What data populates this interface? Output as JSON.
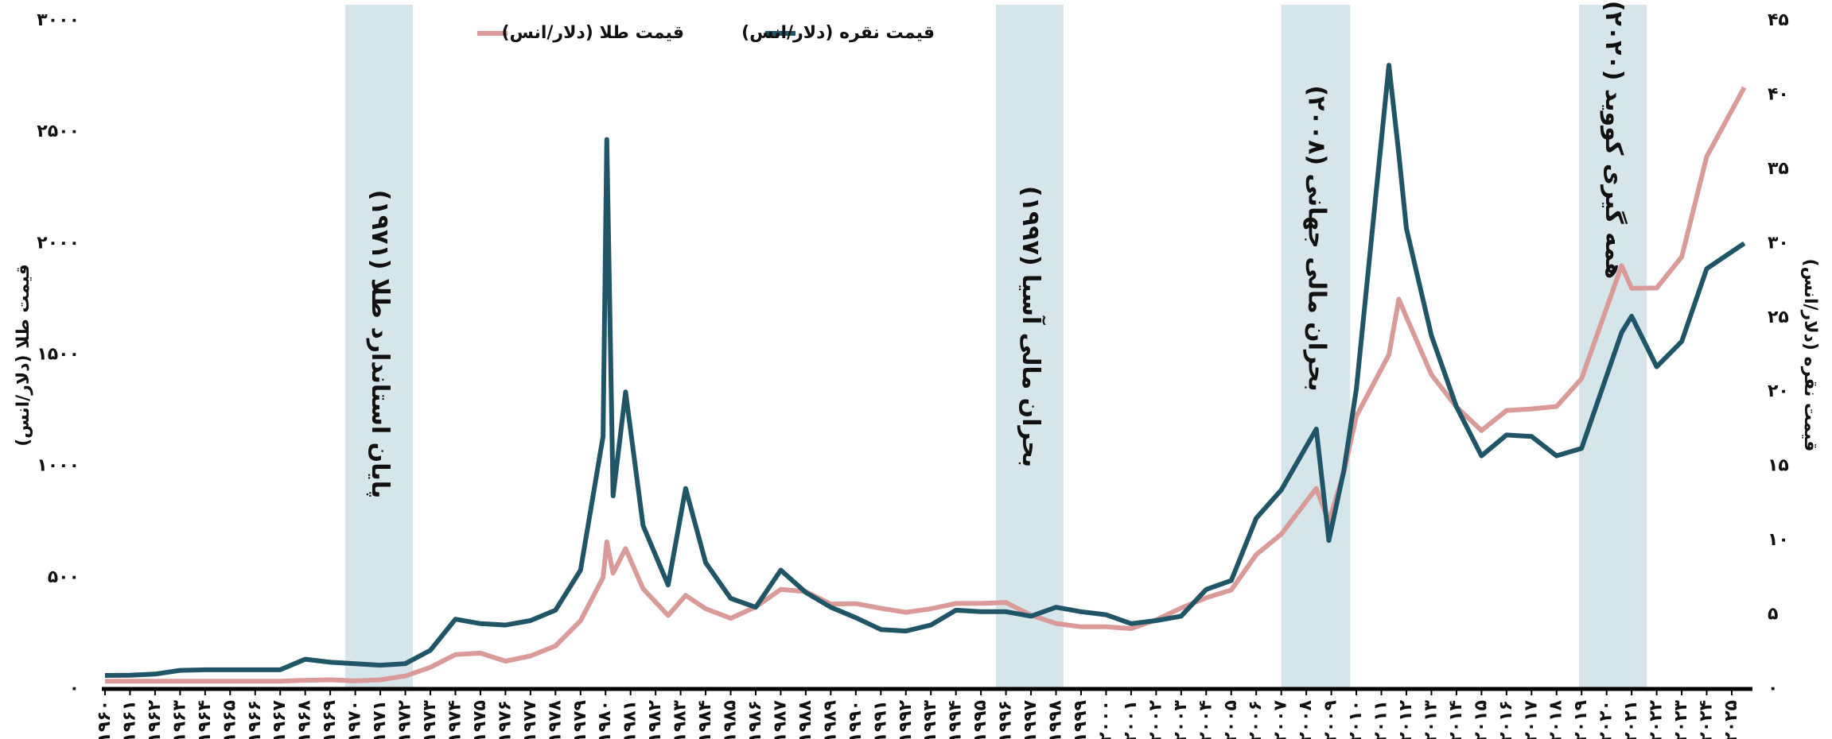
{
  "chart_data": {
    "type": "line",
    "y_label": "قیمت طلا (دلار/انس)",
    "y2_label": "قیمت نقره (دلار/انس)",
    "x": [
      1960,
      1961,
      1962,
      1963,
      1964,
      1965,
      1966,
      1967,
      1968,
      1969,
      1970,
      1971,
      1972,
      1973,
      1974,
      1975,
      1976,
      1977,
      1978,
      1979,
      1979.9,
      1980.05,
      1980.3,
      1980.8,
      1981.5,
      1982.5,
      1983.2,
      1984,
      1985,
      1986,
      1987,
      1988,
      1989,
      1990,
      1991,
      1992,
      1993,
      1994,
      1995,
      1996,
      1997,
      1998,
      1999,
      2000,
      2001,
      2002,
      2003,
      2004,
      2005,
      2006,
      2007,
      2008.4,
      2008.9,
      2009.5,
      2010,
      2011.3,
      2011.7,
      2012,
      2013,
      2014,
      2015,
      2016,
      2017,
      2018,
      2019,
      2020.6,
      2021,
      2022,
      2023,
      2024,
      2025.5
    ],
    "series": [
      {
        "name": "قیمت طلا (دلار/انس)",
        "color": "#d99a98",
        "axis": "y",
        "values": [
          35,
          35,
          35,
          35,
          35,
          35,
          35,
          35,
          39,
          41,
          36,
          41,
          58,
          97,
          154,
          161,
          125,
          148,
          193,
          306,
          500,
          660,
          520,
          630,
          450,
          330,
          420,
          360,
          317,
          368,
          447,
          437,
          381,
          383,
          362,
          344,
          360,
          384,
          384,
          388,
          331,
          294,
          279,
          279,
          271,
          310,
          363,
          409,
          444,
          603,
          695,
          900,
          750,
          972,
          1225,
          1500,
          1750,
          1669,
          1411,
          1266,
          1160,
          1250,
          1257,
          1268,
          1393,
          1900,
          1799,
          1800,
          1940,
          2390,
          2700
        ]
      },
      {
        "name": "قیمت نقره (دلار/انس)",
        "color": "#1f5567",
        "axis": "y2",
        "values": [
          0.91,
          0.92,
          1.0,
          1.25,
          1.29,
          1.29,
          1.29,
          1.29,
          2.0,
          1.8,
          1.7,
          1.6,
          1.7,
          2.6,
          4.7,
          4.4,
          4.3,
          4.6,
          5.3,
          8,
          17,
          37,
          13,
          20,
          11,
          7,
          13.5,
          8.5,
          6.1,
          5.5,
          8,
          6.5,
          5.5,
          4.8,
          4.0,
          3.9,
          4.3,
          5.3,
          5.2,
          5.2,
          4.9,
          5.5,
          5.2,
          5.0,
          4.4,
          4.6,
          4.9,
          6.7,
          7.3,
          11.5,
          13.4,
          17.5,
          10,
          14.7,
          20.2,
          42,
          36,
          31,
          23.8,
          19,
          15.7,
          17.1,
          17,
          15.7,
          16.2,
          24,
          25.1,
          21.7,
          23.4,
          28.3,
          30
        ]
      }
    ],
    "annotations": [
      {
        "text": "پایان استاندارد طلا (۱۹۷۱)",
        "x0": 1969.6,
        "x1": 1972.3
      },
      {
        "text": "بحران مالی آسیا (۱۹۹۷)",
        "x0": 1995.6,
        "x1": 1998.3
      },
      {
        "text": "بحران مالی جهانی (۲۰۰۸)",
        "x0": 2007.0,
        "x1": 2009.75
      },
      {
        "text": "همه گیری کووید (۲۰۲۰)",
        "x0": 2018.9,
        "x1": 2021.6
      }
    ],
    "band_color": "#d6e5ea",
    "xlim": [
      1960,
      2025.7
    ],
    "xticks": [
      {
        "value": 1960,
        "label": "۱۹۶۰"
      },
      {
        "value": 1961,
        "label": "۱۹۶۱"
      },
      {
        "value": 1962,
        "label": "۱۹۶۲"
      },
      {
        "value": 1963,
        "label": "۱۹۶۳"
      },
      {
        "value": 1964,
        "label": "۱۹۶۴"
      },
      {
        "value": 1965,
        "label": "۱۹۶۵"
      },
      {
        "value": 1966,
        "label": "۱۹۶۶"
      },
      {
        "value": 1967,
        "label": "۱۹۶۷"
      },
      {
        "value": 1968,
        "label": "۱۹۶۸"
      },
      {
        "value": 1969,
        "label": "۱۹۶۹"
      },
      {
        "value": 1970,
        "label": "۱۹۷۰"
      },
      {
        "value": 1971,
        "label": "۱۹۷۱"
      },
      {
        "value": 1972,
        "label": "۱۹۷۲"
      },
      {
        "value": 1973,
        "label": "۱۹۷۳"
      },
      {
        "value": 1974,
        "label": "۱۹۷۴"
      },
      {
        "value": 1975,
        "label": "۱۹۷۵"
      },
      {
        "value": 1976,
        "label": "۱۹۷۶"
      },
      {
        "value": 1977,
        "label": "۱۹۷۷"
      },
      {
        "value": 1978,
        "label": "۱۹۷۸"
      },
      {
        "value": 1979,
        "label": "۱۹۷۹"
      },
      {
        "value": 1980,
        "label": "۱۹۸۰"
      },
      {
        "value": 1981,
        "label": "۱۹۸۱"
      },
      {
        "value": 1982,
        "label": "۱۹۸۲"
      },
      {
        "value": 1983,
        "label": "۱۹۸۳"
      },
      {
        "value": 1984,
        "label": "۱۹۸۴"
      },
      {
        "value": 1985,
        "label": "۱۹۸۵"
      },
      {
        "value": 1986,
        "label": "۱۹۸۶"
      },
      {
        "value": 1987,
        "label": "۱۹۸۷"
      },
      {
        "value": 1988,
        "label": "۱۹۸۸"
      },
      {
        "value": 1989,
        "label": "۱۹۸۹"
      },
      {
        "value": 1990,
        "label": "۱۹۹۰"
      },
      {
        "value": 1991,
        "label": "۱۹۹۱"
      },
      {
        "value": 1992,
        "label": "۱۹۹۲"
      },
      {
        "value": 1993,
        "label": "۱۹۹۳"
      },
      {
        "value": 1994,
        "label": "۱۹۹۴"
      },
      {
        "value": 1995,
        "label": "۱۹۹۵"
      },
      {
        "value": 1996,
        "label": "۱۹۹۶"
      },
      {
        "value": 1997,
        "label": "۱۹۹۷"
      },
      {
        "value": 1998,
        "label": "۱۹۹۸"
      },
      {
        "value": 1999,
        "label": "۱۹۹۹"
      },
      {
        "value": 2000,
        "label": "۲۰۰۰"
      },
      {
        "value": 2001,
        "label": "۲۰۰۱"
      },
      {
        "value": 2002,
        "label": "۲۰۰۲"
      },
      {
        "value": 2003,
        "label": "۲۰۰۳"
      },
      {
        "value": 2004,
        "label": "۲۰۰۴"
      },
      {
        "value": 2005,
        "label": "۲۰۰۵"
      },
      {
        "value": 2006,
        "label": "۲۰۰۶"
      },
      {
        "value": 2007,
        "label": "۲۰۰۷"
      },
      {
        "value": 2008,
        "label": "۲۰۰۸"
      },
      {
        "value": 2009,
        "label": "۲۰۰۹"
      },
      {
        "value": 2010,
        "label": "۲۰۱۰"
      },
      {
        "value": 2011,
        "label": "۲۰۱۱"
      },
      {
        "value": 2012,
        "label": "۲۰۱۲"
      },
      {
        "value": 2013,
        "label": "۲۰۱۳"
      },
      {
        "value": 2014,
        "label": "۲۰۱۴"
      },
      {
        "value": 2015,
        "label": "۲۰۱۵"
      },
      {
        "value": 2016,
        "label": "۲۰۱۶"
      },
      {
        "value": 2017,
        "label": "۲۰۱۷"
      },
      {
        "value": 2018,
        "label": "۲۰۱۸"
      },
      {
        "value": 2019,
        "label": "۲۰۱۹"
      },
      {
        "value": 2020,
        "label": "۲۰۲۰"
      },
      {
        "value": 2021,
        "label": "۲۰۲۱"
      },
      {
        "value": 2022,
        "label": "۲۰۲۲"
      },
      {
        "value": 2023,
        "label": "۲۰۲۳"
      },
      {
        "value": 2024,
        "label": "۲۰۲۴"
      },
      {
        "value": 2025,
        "label": "۲۰۲۵"
      }
    ],
    "ylim": [
      0,
      3000
    ],
    "yticks": [
      {
        "value": 0,
        "label": "۰"
      },
      {
        "value": 500,
        "label": "۵۰۰"
      },
      {
        "value": 1000,
        "label": "۱۰۰۰"
      },
      {
        "value": 1500,
        "label": "۱۵۰۰"
      },
      {
        "value": 2000,
        "label": "۲۰۰۰"
      },
      {
        "value": 2500,
        "label": "۲۵۰۰"
      },
      {
        "value": 3000,
        "label": "۳۰۰۰"
      }
    ],
    "y2lim": [
      0,
      45
    ],
    "y2ticks": [
      {
        "value": 0,
        "label": "۰"
      },
      {
        "value": 5,
        "label": "۵"
      },
      {
        "value": 10,
        "label": "۱۰"
      },
      {
        "value": 15,
        "label": "۱۵"
      },
      {
        "value": 20,
        "label": "۲۰"
      },
      {
        "value": 25,
        "label": "۲۵"
      },
      {
        "value": 30,
        "label": "۳۰"
      },
      {
        "value": 35,
        "label": "۳۵"
      },
      {
        "value": 40,
        "label": "۴۰"
      },
      {
        "value": 45,
        "label": "۴۵"
      }
    ],
    "legend": "top"
  }
}
